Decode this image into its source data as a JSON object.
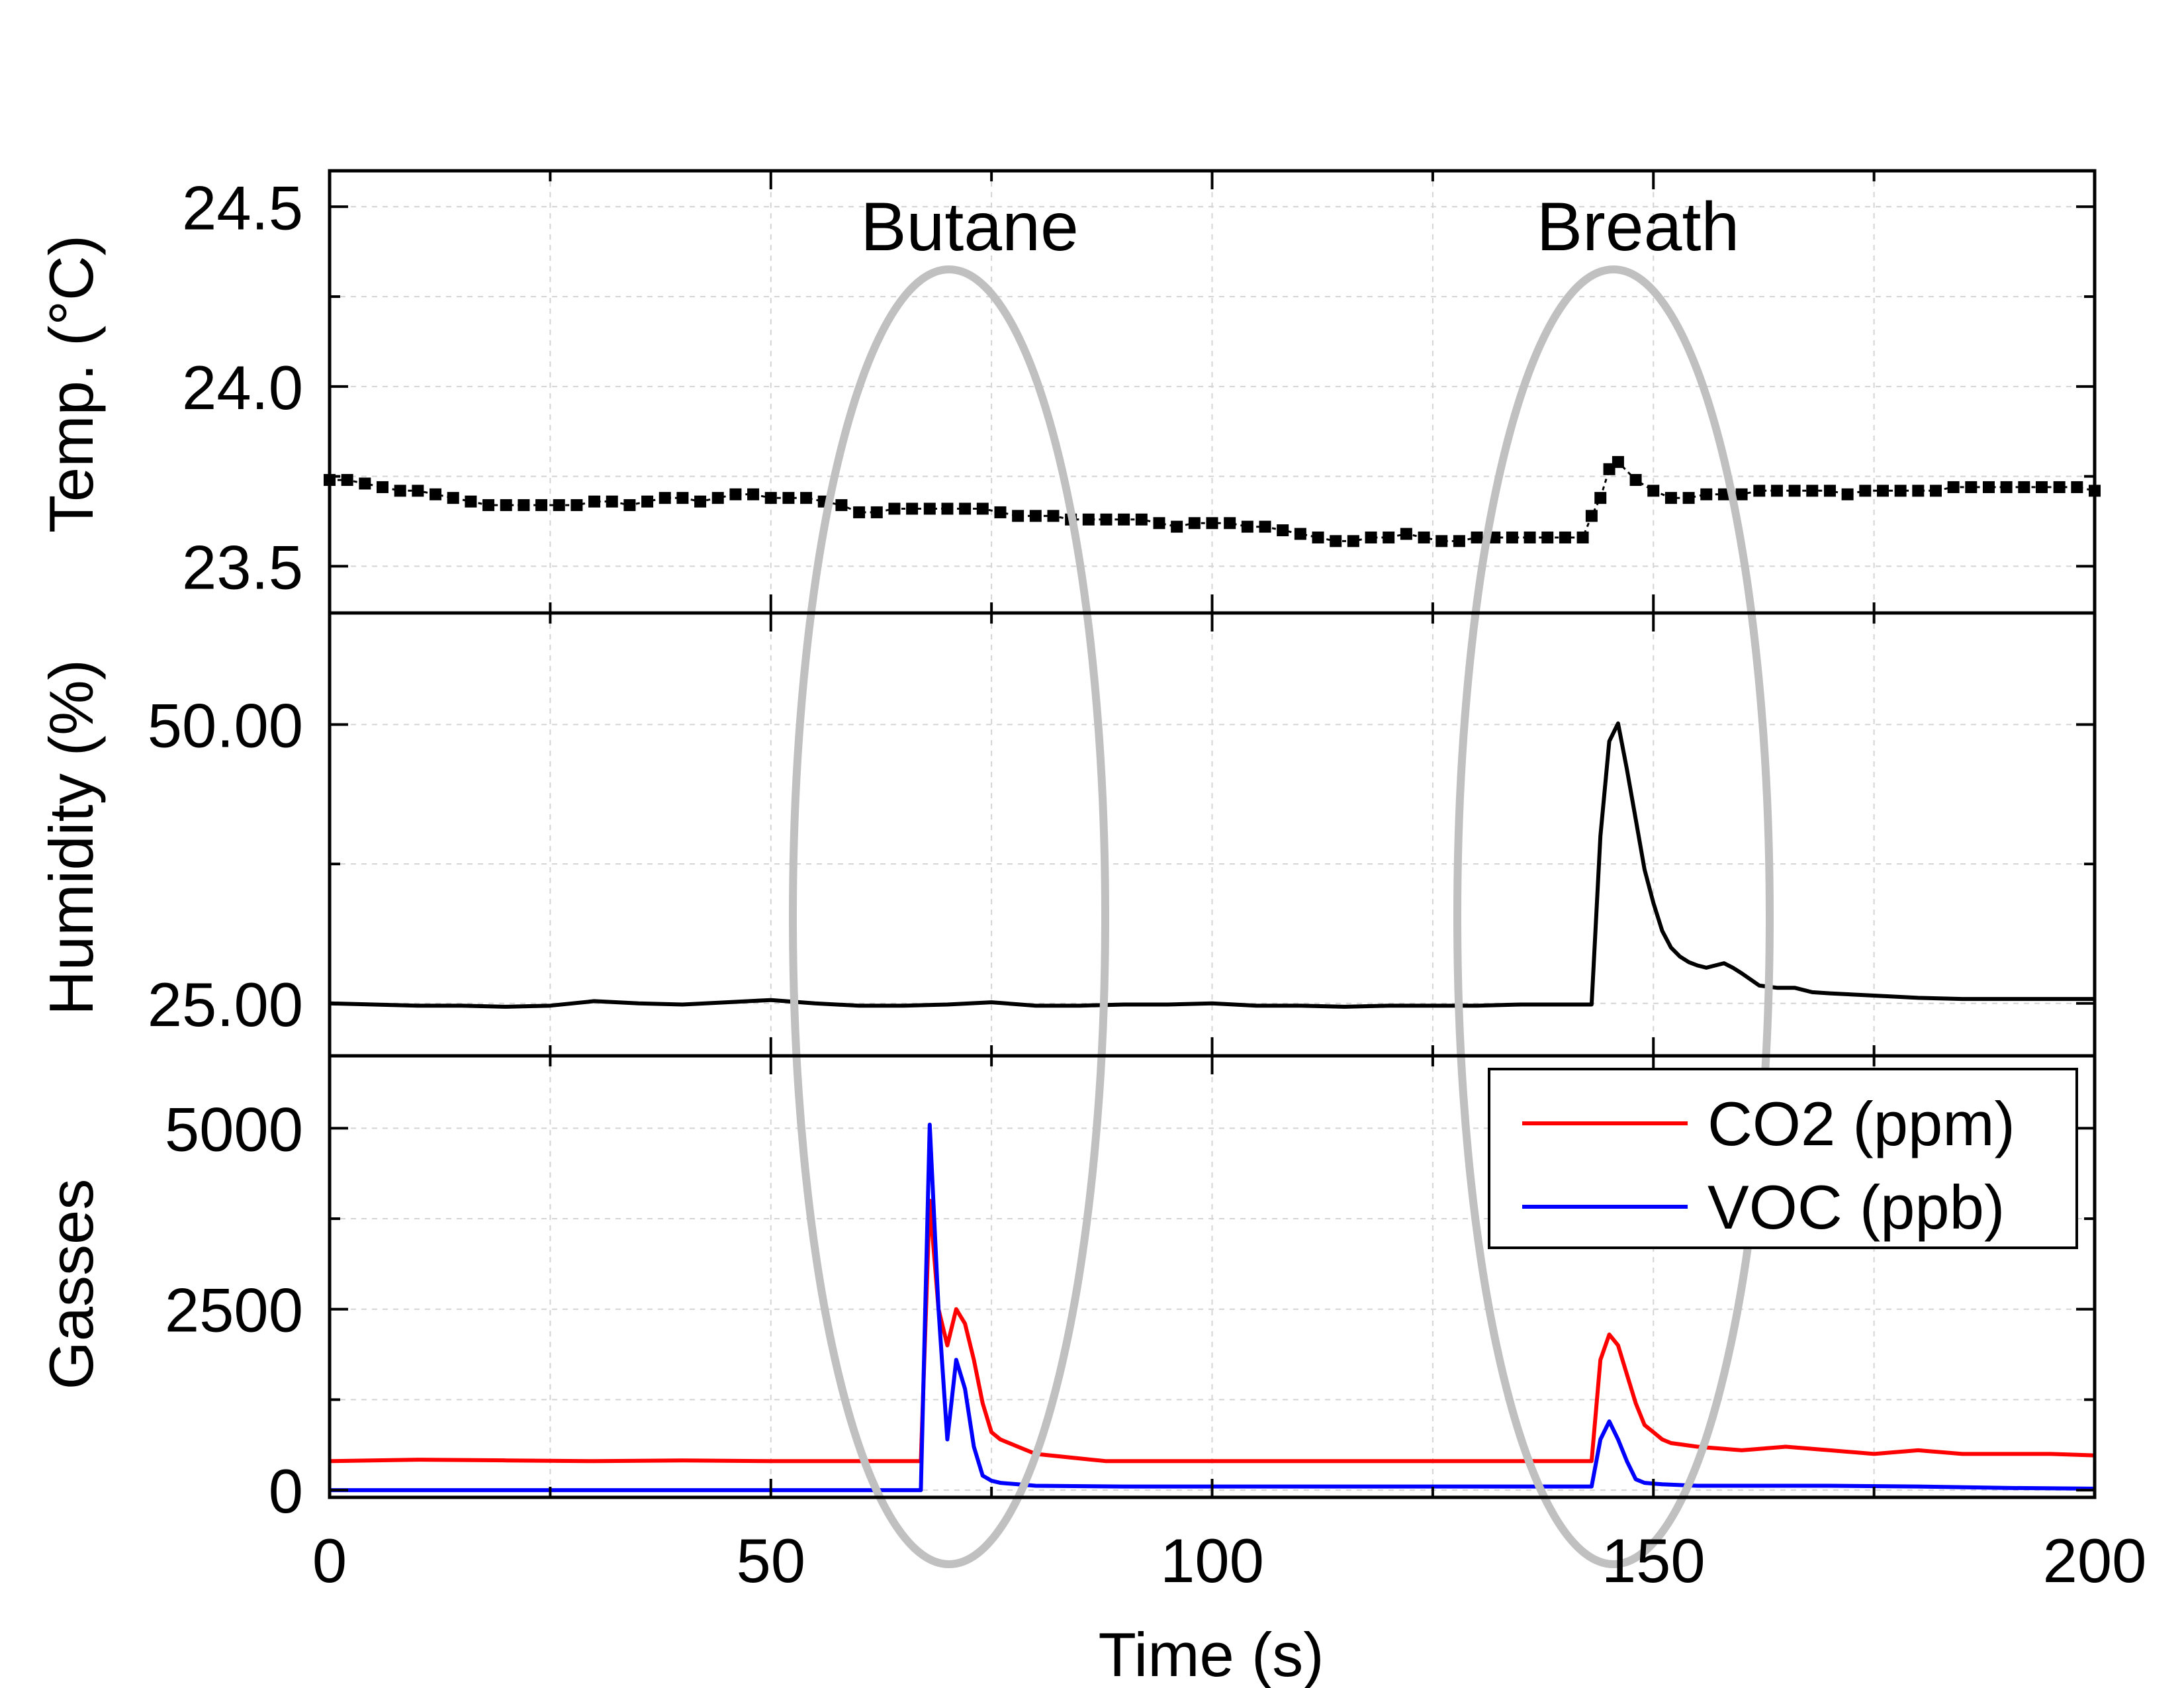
{
  "chart_data": [
    {
      "type": "scatter",
      "ylabel": "Temp. (°C)",
      "ylim": [
        23.37,
        24.6
      ],
      "yticks": [
        "23.5",
        "24.0",
        "24.5"
      ],
      "grid": true,
      "color": "#000000",
      "x": [
        0,
        2,
        4,
        6,
        8,
        10,
        12,
        14,
        16,
        18,
        20,
        22,
        24,
        26,
        28,
        30,
        32,
        34,
        36,
        38,
        40,
        42,
        44,
        46,
        48,
        50,
        52,
        54,
        56,
        58,
        60,
        62,
        64,
        66,
        68,
        70,
        72,
        74,
        76,
        78,
        80,
        82,
        84,
        86,
        88,
        90,
        92,
        94,
        96,
        98,
        100,
        102,
        104,
        106,
        108,
        110,
        112,
        114,
        116,
        118,
        120,
        122,
        124,
        126,
        128,
        130,
        132,
        134,
        136,
        138,
        140,
        142,
        143,
        144,
        145,
        146,
        148,
        150,
        152,
        154,
        156,
        158,
        160,
        162,
        164,
        166,
        168,
        170,
        172,
        174,
        176,
        178,
        180,
        182,
        184,
        186,
        188,
        190,
        192,
        194,
        196,
        198,
        200
      ],
      "y": [
        23.74,
        23.74,
        23.73,
        23.72,
        23.71,
        23.71,
        23.7,
        23.69,
        23.68,
        23.67,
        23.67,
        23.67,
        23.67,
        23.67,
        23.67,
        23.68,
        23.68,
        23.67,
        23.68,
        23.69,
        23.69,
        23.68,
        23.69,
        23.7,
        23.7,
        23.69,
        23.69,
        23.69,
        23.68,
        23.67,
        23.65,
        23.65,
        23.66,
        23.66,
        23.66,
        23.66,
        23.66,
        23.66,
        23.65,
        23.64,
        23.64,
        23.64,
        23.63,
        23.63,
        23.63,
        23.63,
        23.63,
        23.62,
        23.61,
        23.62,
        23.62,
        23.62,
        23.61,
        23.61,
        23.6,
        23.59,
        23.58,
        23.57,
        23.57,
        23.58,
        23.58,
        23.59,
        23.58,
        23.57,
        23.57,
        23.58,
        23.58,
        23.58,
        23.58,
        23.58,
        23.58,
        23.58,
        23.64,
        23.69,
        23.77,
        23.79,
        23.74,
        23.71,
        23.69,
        23.69,
        23.7,
        23.7,
        23.7,
        23.71,
        23.71,
        23.71,
        23.71,
        23.71,
        23.7,
        23.71,
        23.71,
        23.71,
        23.71,
        23.71,
        23.72,
        23.72,
        23.72,
        23.72,
        23.72,
        23.72,
        23.72,
        23.72,
        23.71
      ]
    },
    {
      "type": "line",
      "ylabel": "Humidity (%)",
      "ylim": [
        20.3,
        60.0
      ],
      "yticks": [
        "25.00",
        "50.00"
      ],
      "grid": true,
      "color": "#000000",
      "x": [
        0,
        5,
        10,
        15,
        20,
        25,
        30,
        35,
        40,
        45,
        50,
        55,
        60,
        65,
        70,
        75,
        80,
        85,
        90,
        95,
        100,
        105,
        110,
        115,
        120,
        125,
        130,
        135,
        140,
        143,
        144,
        145,
        146,
        147,
        148,
        149,
        150,
        151,
        152,
        153,
        154,
        155,
        156,
        157,
        158,
        159,
        160,
        162,
        164,
        166,
        168,
        170,
        175,
        180,
        185,
        190,
        195,
        200
      ],
      "y": [
        25.0,
        24.9,
        24.8,
        24.8,
        24.7,
        24.8,
        25.2,
        25.0,
        24.9,
        25.1,
        25.3,
        25.0,
        24.8,
        24.8,
        24.9,
        25.1,
        24.8,
        24.8,
        24.9,
        24.9,
        25.0,
        24.8,
        24.8,
        24.7,
        24.8,
        24.8,
        24.8,
        24.9,
        24.9,
        24.9,
        40.0,
        48.5,
        50.1,
        46.0,
        41.5,
        37.0,
        34.0,
        31.5,
        30.0,
        29.2,
        28.7,
        28.4,
        28.2,
        28.4,
        28.6,
        28.2,
        27.7,
        26.6,
        26.4,
        26.4,
        26.0,
        25.9,
        25.7,
        25.5,
        25.4,
        25.4,
        25.4,
        25.4
      ]
    },
    {
      "type": "line",
      "ylabel": "Gasses",
      "ylim": [
        -100,
        6000
      ],
      "yticks": [
        "0",
        "2500",
        "5000"
      ],
      "grid": true,
      "legend_position": "top-right",
      "series": [
        {
          "name": "CO2 (ppm)",
          "color": "#ff0000",
          "x": [
            0,
            10,
            20,
            30,
            40,
            50,
            60,
            66,
            67,
            68,
            69,
            70,
            71,
            72,
            73,
            74,
            75,
            76,
            78,
            80,
            84,
            88,
            100,
            110,
            120,
            130,
            140,
            143,
            144,
            145,
            146,
            147,
            148,
            149,
            150,
            151,
            152,
            155,
            160,
            165,
            170,
            175,
            180,
            185,
            190,
            195,
            200
          ],
          "y": [
            400,
            420,
            410,
            400,
            410,
            400,
            400,
            400,
            400,
            4000,
            2500,
            2000,
            2500,
            2300,
            1800,
            1200,
            800,
            700,
            600,
            500,
            450,
            400,
            400,
            400,
            400,
            400,
            400,
            400,
            1800,
            2150,
            2000,
            1600,
            1200,
            900,
            800,
            700,
            650,
            600,
            550,
            600,
            550,
            500,
            550,
            500,
            500,
            500,
            480
          ]
        },
        {
          "name": "VOC (ppb)",
          "color": "#0000ff",
          "x": [
            0,
            20,
            40,
            60,
            66,
            67,
            68,
            69,
            70,
            71,
            72,
            73,
            74,
            75,
            76,
            78,
            80,
            90,
            100,
            110,
            120,
            130,
            140,
            143,
            144,
            145,
            146,
            147,
            148,
            149,
            150,
            151,
            155,
            160,
            170,
            180,
            190,
            200
          ],
          "y": [
            0,
            0,
            0,
            0,
            0,
            0,
            5050,
            2500,
            700,
            1800,
            1400,
            600,
            200,
            130,
            100,
            80,
            60,
            50,
            50,
            50,
            50,
            50,
            50,
            50,
            700,
            950,
            700,
            400,
            150,
            100,
            90,
            80,
            60,
            60,
            60,
            50,
            30,
            20
          ]
        }
      ]
    }
  ],
  "shared_x_axis": {
    "xlabel": "Time (s)",
    "xlim": [
      0,
      200
    ],
    "xticks": [
      "0",
      "50",
      "100",
      "150",
      "200"
    ]
  },
  "annotations": [
    {
      "label": "Butane",
      "color": "#c0c0c0"
    },
    {
      "label": "Breath",
      "color": "#c0c0c0"
    }
  ]
}
